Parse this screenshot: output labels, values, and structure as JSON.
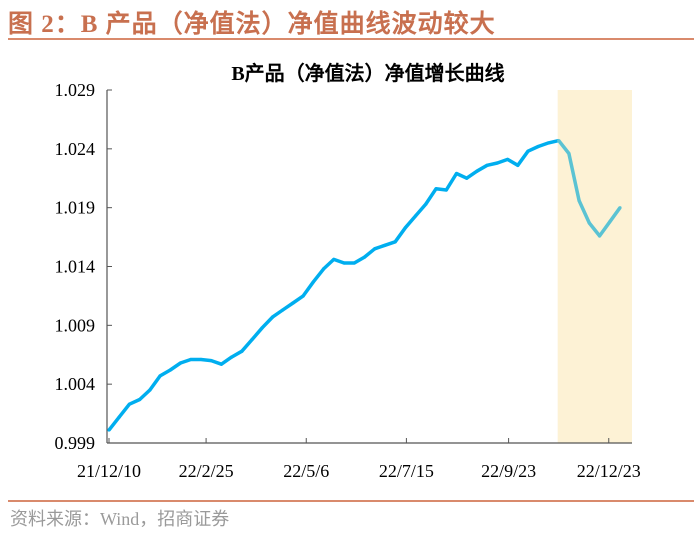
{
  "figure_title": "图 2：B 产品（净值法）净值曲线波动较大",
  "source": "资料来源：Wind，招商证券",
  "colors": {
    "title": "#c8704f",
    "line": "#00aeef",
    "highlight_line": "#5bc3d3",
    "highlight_band": "#fdf2d5"
  },
  "chart_data": {
    "type": "line",
    "title": "B产品（净值法）净值增长曲线",
    "xlabel": "",
    "ylabel": "",
    "ylim": [
      0.999,
      1.029
    ],
    "yticks": [
      "0.999",
      "1.004",
      "1.009",
      "1.014",
      "1.019",
      "1.024",
      "1.029"
    ],
    "xticks": [
      "21/12/10",
      "22/2/25",
      "22/5/6",
      "22/7/15",
      "22/9/23",
      "22/12/23"
    ],
    "grid": false,
    "legend": "none",
    "values": [
      1.0001,
      1.0012,
      1.0023,
      1.0027,
      1.0035,
      1.0047,
      1.0052,
      1.0058,
      1.0061,
      1.0061,
      1.006,
      1.0057,
      1.0063,
      1.0068,
      1.0078,
      1.0088,
      1.0097,
      1.0103,
      1.0109,
      1.0115,
      1.0127,
      1.0138,
      1.0146,
      1.0143,
      1.0143,
      1.0148,
      1.0155,
      1.0158,
      1.0161,
      1.0173,
      1.0183,
      1.0193,
      1.0206,
      1.0205,
      1.0219,
      1.0215,
      1.0221,
      1.0226,
      1.0228,
      1.0231,
      1.0226,
      1.0238,
      1.0242,
      1.0245,
      1.0247,
      1.0236,
      1.0196,
      1.0177,
      1.0166,
      1.0178,
      1.019
    ],
    "highlight": {
      "from_date": "after 22/9/23",
      "to_date": "22/12/23",
      "note": "shaded volatility period"
    }
  }
}
